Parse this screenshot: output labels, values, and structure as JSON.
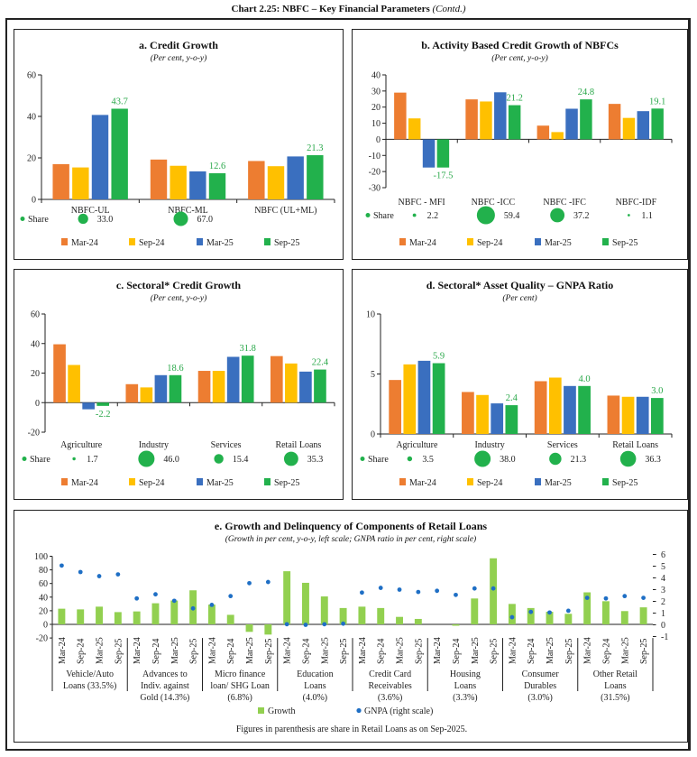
{
  "header": {
    "title": "Chart 2.25: NBFC – Key Financial Parameters",
    "suffix": "(Contd.)"
  },
  "share_label": "Share",
  "colors": {
    "Mar-24": "#ED7D31",
    "Sep-24": "#FFC000",
    "Mar-25": "#3A6FBF",
    "Sep-25": "#22B14C",
    "label": "#2AA84A",
    "growth": "#92D050",
    "gnpa": "#1F6FC5"
  },
  "chart_data": [
    {
      "type": "bar",
      "title": "a. Credit Growth",
      "subtitle": "(Per cent, y-o-y)",
      "categories": [
        "NBFC-UL",
        "NBFC-ML",
        "NBFC (UL+ML)"
      ],
      "series": [
        {
          "name": "Mar-24",
          "values": [
            17.0,
            19.2,
            18.5
          ]
        },
        {
          "name": "Sep-24",
          "values": [
            15.4,
            16.2,
            16.0
          ]
        },
        {
          "name": "Mar-25",
          "values": [
            40.7,
            13.5,
            20.7
          ]
        },
        {
          "name": "Sep-25",
          "values": [
            43.7,
            12.6,
            21.3
          ]
        }
      ],
      "value_labels": [
        "43.7",
        "12.6",
        "21.3"
      ],
      "shares": [
        "33.0",
        "67.0",
        null
      ],
      "ylim": [
        0,
        60
      ],
      "yticks": [
        "0",
        "20",
        "40",
        "60"
      ],
      "legend": "bottom"
    },
    {
      "type": "bar",
      "title": "b. Activity Based Credit Growth of NBFCs",
      "subtitle": "(Per cent, y-o-y)",
      "categories": [
        "NBFC - MFI",
        "NBFC -ICC",
        "NBFC -IFC",
        "NBFC-IDF"
      ],
      "series": [
        {
          "name": "Mar-24",
          "values": [
            29.0,
            24.8,
            8.5,
            22.0
          ]
        },
        {
          "name": "Sep-24",
          "values": [
            13.0,
            23.5,
            4.5,
            13.3
          ]
        },
        {
          "name": "Mar-25",
          "values": [
            -17.5,
            29.2,
            19.0,
            17.5
          ]
        },
        {
          "name": "Sep-25",
          "values": [
            -17.5,
            21.2,
            24.8,
            19.1
          ]
        }
      ],
      "value_labels": [
        "-17.5",
        "21.2",
        "24.8",
        "19.1"
      ],
      "shares": [
        "2.2",
        "59.4",
        "37.2",
        "1.1"
      ],
      "ylim": [
        -30,
        40
      ],
      "yticks": [
        "-30",
        "-20",
        "-10",
        "0",
        "10",
        "20",
        "30",
        "40"
      ],
      "legend": "bottom"
    },
    {
      "type": "bar",
      "title": "c. Sectoral* Credit Growth",
      "subtitle": "(Per cent, y-o-y)",
      "categories": [
        "Agriculture",
        "Industry",
        "Services",
        "Retail Loans"
      ],
      "series": [
        {
          "name": "Mar-24",
          "values": [
            39.5,
            12.5,
            21.5,
            31.5
          ]
        },
        {
          "name": "Sep-24",
          "values": [
            25.5,
            10.3,
            21.5,
            26.5
          ]
        },
        {
          "name": "Mar-25",
          "values": [
            -4.5,
            18.6,
            31.0,
            21.0
          ]
        },
        {
          "name": "Sep-25",
          "values": [
            -2.2,
            18.6,
            31.8,
            22.4
          ]
        }
      ],
      "value_labels": [
        "-2.2",
        "18.6",
        "31.8",
        "22.4"
      ],
      "shares": [
        "1.7",
        "46.0",
        "15.4",
        "35.3"
      ],
      "ylim": [
        -20,
        60
      ],
      "yticks": [
        "-20",
        "0",
        "20",
        "40",
        "60"
      ],
      "legend": "bottom"
    },
    {
      "type": "bar",
      "title": "d. Sectoral* Asset Quality – GNPA Ratio",
      "subtitle": "(Per cent)",
      "categories": [
        "Agriculture",
        "Industry",
        "Services",
        "Retail Loans"
      ],
      "series": [
        {
          "name": "Mar-24",
          "values": [
            4.5,
            3.5,
            4.4,
            3.2
          ]
        },
        {
          "name": "Sep-24",
          "values": [
            5.8,
            3.25,
            4.7,
            3.1
          ]
        },
        {
          "name": "Mar-25",
          "values": [
            6.1,
            2.55,
            4.0,
            3.1
          ]
        },
        {
          "name": "Sep-25",
          "values": [
            5.9,
            2.4,
            4.0,
            3.0
          ]
        }
      ],
      "value_labels": [
        "5.9",
        "2.4",
        "4.0",
        "3.0"
      ],
      "shares": [
        "3.5",
        "38.0",
        "21.3",
        "36.3"
      ],
      "ylim": [
        0,
        10
      ],
      "yticks": [
        "0",
        "5",
        "10"
      ],
      "legend": "bottom"
    },
    {
      "type": "bar+scatter",
      "title": "e. Growth and Delinquency of Components of Retail Loans",
      "subtitle": "(Growth in per cent, y-o-y, left scale; GNPA ratio in per cent, right scale)",
      "periods": [
        "Mar-24",
        "Sep-24",
        "Mar-25",
        "Sep-25"
      ],
      "groups": [
        {
          "label": [
            "Vehicle/Auto",
            "Loans (33.5%)"
          ],
          "growth": [
            23,
            22,
            26,
            18
          ],
          "gnpa": [
            5.05,
            4.5,
            4.15,
            4.3
          ]
        },
        {
          "label": [
            "Advances to",
            "Indiv. against",
            "Gold (14.3%)"
          ],
          "growth": [
            19,
            31,
            35,
            50
          ],
          "gnpa": [
            2.25,
            2.6,
            2.05,
            1.4
          ]
        },
        {
          "label": [
            "Micro finance",
            "loan/ SHG Loan",
            "(6.8%)"
          ],
          "growth": [
            29,
            14,
            -11,
            -15
          ],
          "gnpa": [
            1.7,
            2.45,
            3.55,
            3.65
          ]
        },
        {
          "label": [
            "Education",
            "Loans",
            "(4.0%)"
          ],
          "growth": [
            78,
            61,
            41,
            24
          ],
          "gnpa": [
            0.05,
            0.0,
            0.05,
            0.1
          ]
        },
        {
          "label": [
            "Credit Card",
            "Receivables",
            "(3.6%)"
          ],
          "growth": [
            26,
            24,
            11,
            8
          ],
          "gnpa": [
            2.75,
            3.15,
            3.0,
            2.8
          ]
        },
        {
          "label": [
            "Housing",
            "Loans",
            "(3.3%)"
          ],
          "growth": [
            0,
            -2,
            38,
            97
          ],
          "gnpa": [
            2.9,
            2.55,
            3.1,
            3.1
          ]
        },
        {
          "label": [
            "Consumer",
            "Durables",
            "(3.0%)"
          ],
          "growth": [
            30,
            24,
            18.5,
            15.5
          ],
          "gnpa": [
            0.65,
            1.1,
            1.05,
            1.2
          ]
        },
        {
          "label": [
            "Other Retail",
            "Loans",
            "(31.5%)"
          ],
          "growth": [
            47,
            34,
            19.5,
            25
          ],
          "gnpa": [
            2.3,
            2.25,
            2.45,
            2.3
          ]
        }
      ],
      "ylim_left": [
        -20,
        100
      ],
      "yticks_left": [
        "-20",
        "0",
        "20",
        "40",
        "60",
        "80",
        "100"
      ],
      "ylim_right": [
        -1,
        6
      ],
      "yticks_right": [
        "-1",
        "0",
        "1",
        "2",
        "3",
        "4",
        "5",
        "6"
      ],
      "legend": [
        "Growth",
        "GNPA (right scale)"
      ],
      "note": "Figures in parenthesis are share in Retail Loans as on Sep-2025."
    }
  ]
}
